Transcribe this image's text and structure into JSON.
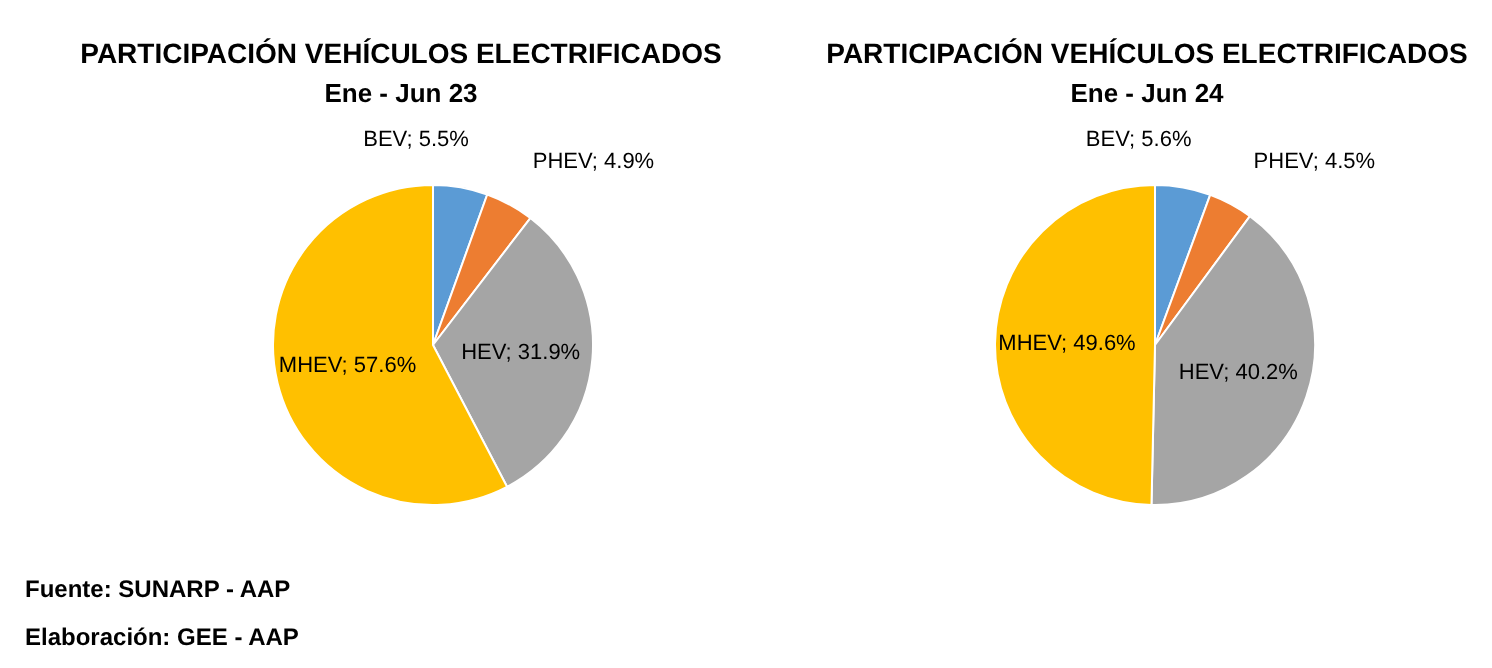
{
  "chart_data": [
    {
      "type": "pie",
      "title": "PARTICIPACIÓN VEHÍCULOS ELECTRIFICADOS",
      "subtitle": "Ene - Jun 23",
      "categories": [
        "BEV",
        "PHEV",
        "HEV",
        "MHEV"
      ],
      "values": [
        5.5,
        4.9,
        31.9,
        57.6
      ],
      "colors": [
        "#5b9bd5",
        "#ed7d31",
        "#a5a5a5",
        "#ffc000"
      ],
      "value_labels": [
        "5.5%",
        "4.9%",
        "31.9%",
        "57.6%"
      ],
      "annotations": [
        "Fuente: SUNARP - AAP",
        "Elaboración: GEE - AAP"
      ]
    },
    {
      "type": "pie",
      "title": "PARTICIPACIÓN VEHÍCULOS ELECTRIFICADOS",
      "subtitle": "Ene - Jun 24",
      "categories": [
        "BEV",
        "PHEV",
        "HEV",
        "MHEV"
      ],
      "values": [
        5.6,
        4.5,
        40.2,
        49.6
      ],
      "colors": [
        "#5b9bd5",
        "#ed7d31",
        "#a5a5a5",
        "#ffc000"
      ],
      "value_labels": [
        "5.6%",
        "4.5%",
        "40.2%",
        "49.6%"
      ]
    }
  ]
}
